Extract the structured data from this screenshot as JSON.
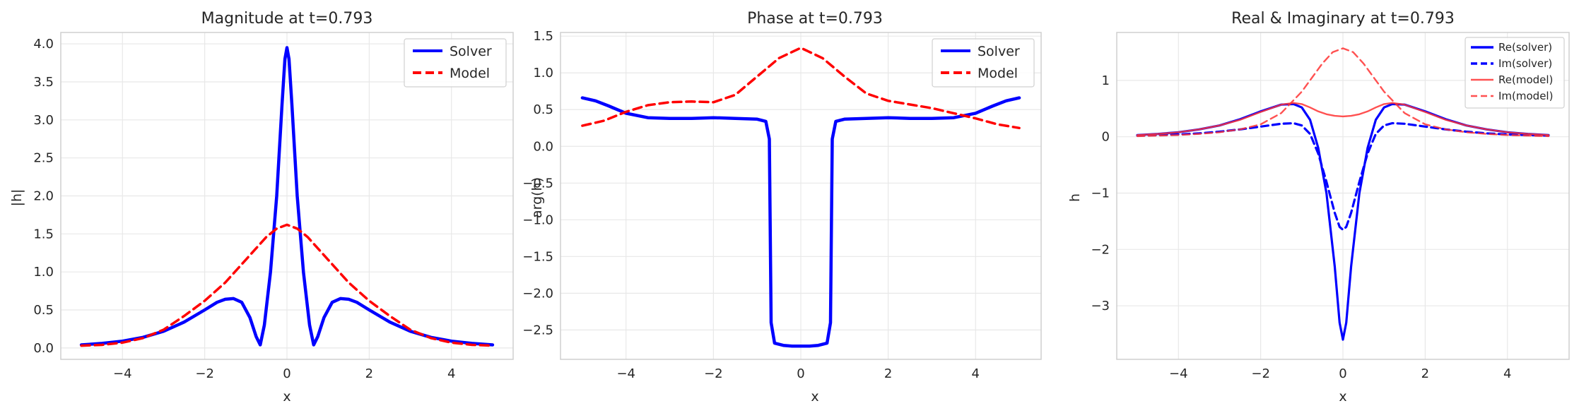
{
  "chart_data": [
    {
      "type": "line",
      "title": "Magnitude at t=0.793",
      "xlabel": "x",
      "ylabel": "|h|",
      "xlim": [
        -5.5,
        5.5
      ],
      "ylim": [
        -0.15,
        4.15
      ],
      "xticks": [
        -4,
        -2,
        0,
        2,
        4
      ],
      "yticks": [
        0.0,
        0.5,
        1.0,
        1.5,
        2.0,
        2.5,
        3.0,
        3.5,
        4.0
      ],
      "ytick_labels": [
        "0.0",
        "0.5",
        "1.0",
        "1.5",
        "2.0",
        "2.5",
        "3.0",
        "3.5",
        "4.0"
      ],
      "xtick_labels": [
        "−4",
        "−2",
        "0",
        "2",
        "4"
      ],
      "grid": true,
      "legend": "top-right",
      "series": [
        {
          "name": "Solver",
          "color": "#0000ff",
          "style": "solid",
          "x": [
            -5,
            -4.5,
            -4,
            -3.5,
            -3,
            -2.5,
            -2,
            -1.7,
            -1.5,
            -1.3,
            -1.1,
            -0.9,
            -0.75,
            -0.65,
            -0.55,
            -0.4,
            -0.25,
            -0.12,
            -0.05,
            0,
            0.05,
            0.12,
            0.25,
            0.4,
            0.55,
            0.65,
            0.75,
            0.9,
            1.1,
            1.3,
            1.5,
            1.7,
            2,
            2.5,
            3,
            3.5,
            4,
            4.5,
            5
          ],
          "y": [
            0.04,
            0.06,
            0.09,
            0.14,
            0.22,
            0.34,
            0.5,
            0.6,
            0.64,
            0.65,
            0.6,
            0.4,
            0.15,
            0.04,
            0.3,
            1.0,
            2.0,
            3.2,
            3.8,
            3.95,
            3.8,
            3.2,
            2.0,
            1.0,
            0.3,
            0.04,
            0.15,
            0.4,
            0.6,
            0.65,
            0.64,
            0.6,
            0.5,
            0.34,
            0.22,
            0.14,
            0.09,
            0.06,
            0.04
          ]
        },
        {
          "name": "Model",
          "color": "#ff0000",
          "style": "dashed",
          "x": [
            -5,
            -4.5,
            -4,
            -3.5,
            -3,
            -2.5,
            -2,
            -1.5,
            -1,
            -0.5,
            -0.25,
            0,
            0.25,
            0.5,
            1,
            1.5,
            2,
            2.5,
            3,
            3.5,
            4,
            4.5,
            5
          ],
          "y": [
            0.03,
            0.04,
            0.07,
            0.13,
            0.24,
            0.42,
            0.62,
            0.86,
            1.16,
            1.46,
            1.57,
            1.62,
            1.57,
            1.46,
            1.16,
            0.86,
            0.62,
            0.42,
            0.24,
            0.13,
            0.07,
            0.04,
            0.03
          ]
        }
      ]
    },
    {
      "type": "line",
      "title": "Phase at t=0.793",
      "xlabel": "x",
      "ylabel": "arg(h)",
      "xlim": [
        -5.5,
        5.5
      ],
      "ylim": [
        -2.9,
        1.55
      ],
      "xticks": [
        -4,
        -2,
        0,
        2,
        4
      ],
      "xtick_labels": [
        "−4",
        "−2",
        "0",
        "2",
        "4"
      ],
      "yticks": [
        -2.5,
        -2.0,
        -1.5,
        -1.0,
        -0.5,
        0.0,
        0.5,
        1.0,
        1.5
      ],
      "ytick_labels": [
        "−2.5",
        "−2.0",
        "−1.5",
        "−1.0",
        "−0.5",
        "0.0",
        "0.5",
        "1.0",
        "1.5"
      ],
      "grid": true,
      "legend": "top-right",
      "series": [
        {
          "name": "Solver",
          "color": "#0000ff",
          "style": "solid",
          "x": [
            -5,
            -4.7,
            -4.4,
            -4,
            -3.5,
            -3,
            -2.5,
            -2,
            -1.5,
            -1,
            -0.8,
            -0.72,
            -0.68,
            -0.6,
            -0.4,
            -0.2,
            0,
            0.2,
            0.4,
            0.6,
            0.68,
            0.72,
            0.8,
            1,
            1.5,
            2,
            2.5,
            3,
            3.5,
            4,
            4.4,
            4.7,
            5
          ],
          "y": [
            0.66,
            0.62,
            0.55,
            0.45,
            0.39,
            0.38,
            0.38,
            0.39,
            0.38,
            0.37,
            0.34,
            0.1,
            -2.4,
            -2.68,
            -2.71,
            -2.72,
            -2.72,
            -2.72,
            -2.71,
            -2.68,
            -2.4,
            0.1,
            0.34,
            0.37,
            0.38,
            0.39,
            0.38,
            0.38,
            0.39,
            0.45,
            0.55,
            0.62,
            0.66
          ]
        },
        {
          "name": "Model",
          "color": "#ff0000",
          "style": "dashed",
          "x": [
            -5,
            -4.5,
            -4,
            -3.5,
            -3,
            -2.5,
            -2,
            -1.5,
            -1,
            -0.5,
            0,
            0.5,
            1,
            1.5,
            2,
            2.5,
            3,
            3.5,
            4,
            4.5,
            5
          ],
          "y": [
            0.28,
            0.35,
            0.47,
            0.56,
            0.6,
            0.61,
            0.6,
            0.7,
            0.95,
            1.2,
            1.34,
            1.2,
            0.95,
            0.72,
            0.62,
            0.57,
            0.52,
            0.45,
            0.38,
            0.3,
            0.25
          ]
        }
      ]
    },
    {
      "type": "line",
      "title": "Real & Imaginary at t=0.793",
      "xlabel": "x",
      "ylabel": "h",
      "xlim": [
        -5.5,
        5.5
      ],
      "ylim": [
        -3.95,
        1.85
      ],
      "xticks": [
        -4,
        -2,
        0,
        2,
        4
      ],
      "xtick_labels": [
        "−4",
        "−2",
        "0",
        "2",
        "4"
      ],
      "yticks": [
        -3,
        -2,
        -1,
        0,
        1
      ],
      "ytick_labels": [
        "−3",
        "−2",
        "−1",
        "0",
        "1"
      ],
      "grid": true,
      "legend": "top-right",
      "series": [
        {
          "name": "Re(solver)",
          "color": "#0000ff",
          "style": "solid",
          "x": [
            -5,
            -4.5,
            -4,
            -3.5,
            -3,
            -2.5,
            -2,
            -1.5,
            -1.2,
            -1,
            -0.8,
            -0.6,
            -0.4,
            -0.2,
            -0.08,
            0,
            0.08,
            0.2,
            0.4,
            0.6,
            0.8,
            1,
            1.2,
            1.5,
            2,
            2.5,
            3,
            3.5,
            4,
            4.5,
            5
          ],
          "y": [
            0.03,
            0.05,
            0.08,
            0.13,
            0.2,
            0.31,
            0.45,
            0.57,
            0.58,
            0.52,
            0.3,
            -0.2,
            -1.0,
            -2.3,
            -3.3,
            -3.6,
            -3.3,
            -2.3,
            -1.0,
            -0.2,
            0.3,
            0.52,
            0.58,
            0.57,
            0.45,
            0.31,
            0.2,
            0.13,
            0.08,
            0.05,
            0.03
          ]
        },
        {
          "name": "Im(solver)",
          "color": "#0000ff",
          "style": "dashed",
          "x": [
            -5,
            -4.5,
            -4,
            -3.5,
            -3,
            -2.5,
            -2,
            -1.5,
            -1.2,
            -1,
            -0.8,
            -0.6,
            -0.4,
            -0.2,
            -0.08,
            0,
            0.08,
            0.2,
            0.4,
            0.6,
            0.8,
            1,
            1.2,
            1.5,
            2,
            2.5,
            3,
            3.5,
            4,
            4.5,
            5
          ],
          "y": [
            0.02,
            0.03,
            0.04,
            0.06,
            0.09,
            0.13,
            0.18,
            0.23,
            0.24,
            0.2,
            0.05,
            -0.3,
            -0.8,
            -1.35,
            -1.6,
            -1.65,
            -1.6,
            -1.35,
            -0.8,
            -0.3,
            0.05,
            0.2,
            0.24,
            0.23,
            0.18,
            0.13,
            0.09,
            0.06,
            0.04,
            0.03,
            0.02
          ]
        },
        {
          "name": "Re(model)",
          "color": "#ff3333",
          "style": "solid",
          "x": [
            -5,
            -4.5,
            -4,
            -3.5,
            -3,
            -2.5,
            -2,
            -1.5,
            -1.2,
            -1,
            -0.8,
            -0.6,
            -0.4,
            -0.2,
            0,
            0.2,
            0.4,
            0.6,
            0.8,
            1,
            1.2,
            1.5,
            2,
            2.5,
            3,
            3.5,
            4,
            4.5,
            5
          ],
          "y": [
            0.03,
            0.05,
            0.08,
            0.13,
            0.2,
            0.3,
            0.44,
            0.57,
            0.6,
            0.58,
            0.52,
            0.45,
            0.4,
            0.37,
            0.36,
            0.37,
            0.4,
            0.45,
            0.52,
            0.58,
            0.6,
            0.57,
            0.44,
            0.3,
            0.2,
            0.13,
            0.08,
            0.05,
            0.03
          ]
        },
        {
          "name": "Im(model)",
          "color": "#ff3333",
          "style": "dashed",
          "x": [
            -5,
            -4.5,
            -4,
            -3.5,
            -3,
            -2.5,
            -2,
            -1.5,
            -1,
            -0.5,
            -0.25,
            0,
            0.25,
            0.5,
            1,
            1.5,
            2,
            2.5,
            3,
            3.5,
            4,
            4.5,
            5
          ],
          "y": [
            0.01,
            0.02,
            0.03,
            0.05,
            0.08,
            0.13,
            0.22,
            0.42,
            0.8,
            1.3,
            1.5,
            1.57,
            1.5,
            1.3,
            0.8,
            0.42,
            0.22,
            0.13,
            0.08,
            0.05,
            0.03,
            0.02,
            0.01
          ]
        }
      ]
    }
  ]
}
